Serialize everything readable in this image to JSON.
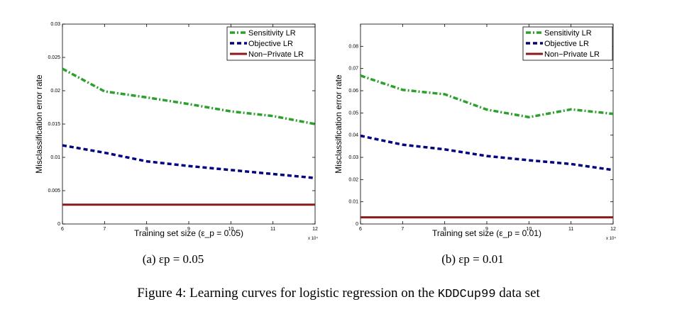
{
  "chart_data": [
    {
      "type": "line",
      "panel": "a",
      "xlabel": "Training set size (ε_p = 0.05)",
      "ylabel": "Misclassification error rate",
      "x_multiplier_label": "x 10⁴",
      "x": [
        6,
        7,
        8,
        9,
        10,
        11,
        12
      ],
      "xlim": [
        6,
        12
      ],
      "xticks": [
        "6",
        "7",
        "8",
        "9",
        "10",
        "11",
        "12"
      ],
      "ylim": [
        0,
        0.03
      ],
      "yticks": [
        "0",
        "0.005",
        "0.01",
        "0.015",
        "0.02",
        "0.025",
        "0.03"
      ],
      "legend_position": "top-right",
      "grid": false,
      "series": [
        {
          "name": "Sensitivity LR",
          "color": "#2ca02c",
          "style": "dash-dot",
          "values": [
            0.0233,
            0.0199,
            0.019,
            0.018,
            0.0169,
            0.0162,
            0.015
          ]
        },
        {
          "name": "Objective LR",
          "color": "#000080",
          "style": "dashed",
          "values": [
            0.0118,
            0.0107,
            0.0094,
            0.0087,
            0.0081,
            0.0075,
            0.0069
          ]
        },
        {
          "name": "Non−Private LR",
          "color": "#8b1a1a",
          "style": "solid",
          "values": [
            0.0029,
            0.0029,
            0.0029,
            0.0029,
            0.0029,
            0.0029,
            0.0029
          ]
        }
      ]
    },
    {
      "type": "line",
      "panel": "b",
      "xlabel": "Training set size (ε_p = 0.01)",
      "ylabel": "Misclassification error rate",
      "x_multiplier_label": "x 10⁴",
      "x": [
        6,
        7,
        8,
        9,
        10,
        11,
        12
      ],
      "xlim": [
        6,
        12
      ],
      "xticks": [
        "6",
        "7",
        "8",
        "9",
        "10",
        "11",
        "12"
      ],
      "ylim": [
        0,
        0.09
      ],
      "yticks": [
        "0",
        "0.01",
        "0.02",
        "0.03",
        "0.04",
        "0.05",
        "0.06",
        "0.07",
        "0.08"
      ],
      "legend_position": "top-right",
      "grid": false,
      "series": [
        {
          "name": "Sensitivity LR",
          "color": "#2ca02c",
          "style": "dash-dot",
          "values": [
            0.0668,
            0.0604,
            0.0584,
            0.0515,
            0.0481,
            0.0516,
            0.0496
          ]
        },
        {
          "name": "Objective LR",
          "color": "#000080",
          "style": "dashed",
          "values": [
            0.0397,
            0.0357,
            0.0336,
            0.0306,
            0.0287,
            0.027,
            0.0243
          ]
        },
        {
          "name": "Non−Private LR",
          "color": "#8b1a1a",
          "style": "solid",
          "values": [
            0.003,
            0.003,
            0.003,
            0.003,
            0.003,
            0.003,
            0.003
          ]
        }
      ]
    }
  ],
  "captions": {
    "a": "(a) εp = 0.05",
    "b": "(b) εp = 0.01"
  },
  "figure_caption": {
    "prefix": "Figure 4: Learning curves for logistic regression on the ",
    "dataset": "KDDCup99",
    "suffix": " data set"
  }
}
